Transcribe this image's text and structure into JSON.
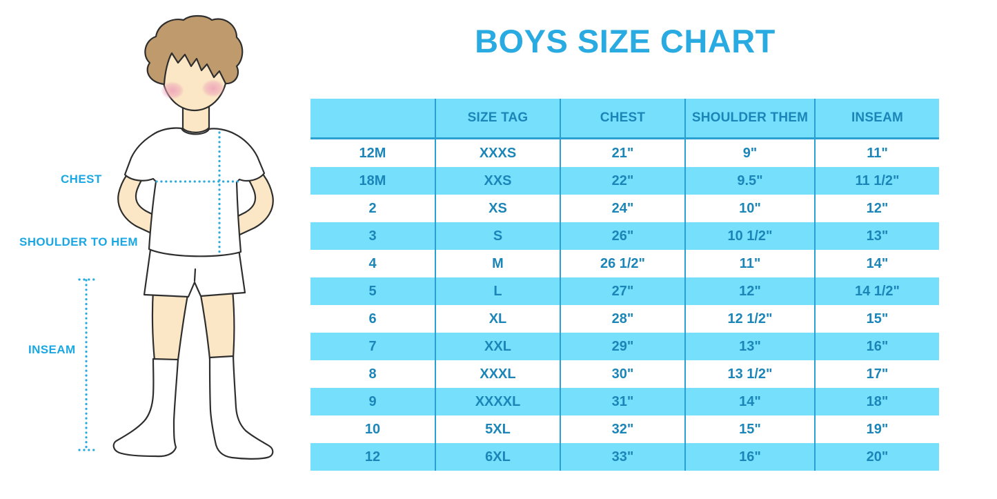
{
  "chart_data": {
    "type": "table",
    "title": "BOYS SIZE CHART",
    "columns": [
      "",
      "SIZE TAG",
      "CHEST",
      "SHOULDER THEM",
      "INSEAM"
    ],
    "rows": [
      [
        "12M",
        "XXXS",
        "21\"",
        "9\"",
        "11\""
      ],
      [
        "18M",
        "XXS",
        "22\"",
        "9.5\"",
        "11 1/2\""
      ],
      [
        "2",
        "XS",
        "24\"",
        "10\"",
        "12\""
      ],
      [
        "3",
        "S",
        "26\"",
        "10 1/2\"",
        "13\""
      ],
      [
        "4",
        "M",
        "26 1/2\"",
        "11\"",
        "14\""
      ],
      [
        "5",
        "L",
        "27\"",
        "12\"",
        "14 1/2\""
      ],
      [
        "6",
        "XL",
        "28\"",
        "12 1/2\"",
        "15\""
      ],
      [
        "7",
        "XXL",
        "29\"",
        "13\"",
        "16\""
      ],
      [
        "8",
        "XXXL",
        "30\"",
        "13 1/2\"",
        "17\""
      ],
      [
        "9",
        "XXXXL",
        "31\"",
        "14\"",
        "18\""
      ],
      [
        "10",
        "5XL",
        "32\"",
        "15\"",
        "19\""
      ],
      [
        "12",
        "6XL",
        "33\"",
        "16\"",
        "20\""
      ]
    ],
    "layout": {
      "header_background": "light-blue",
      "row_striping": "even rows white, odd rows light-blue, last row blue",
      "grid": "vertical column dividers only, header bottom rule"
    }
  },
  "figure_labels": {
    "chest": "CHEST",
    "shoulder_to_hem": "SHOULDER TO HEM",
    "inseam": "INSEAM"
  },
  "colors": {
    "title_blue": "#29abe2",
    "label_blue": "#1aa7e3",
    "table_text": "#1c85b8",
    "stripe_blue": "#76e0fc",
    "divider_blue": "#2aa0d2",
    "dotted_blue": "#29aadf",
    "skin": "#fbe7c5",
    "hair": "#bf9a6d",
    "blush": "#eda0b8",
    "outline": "#2e2e2e"
  }
}
